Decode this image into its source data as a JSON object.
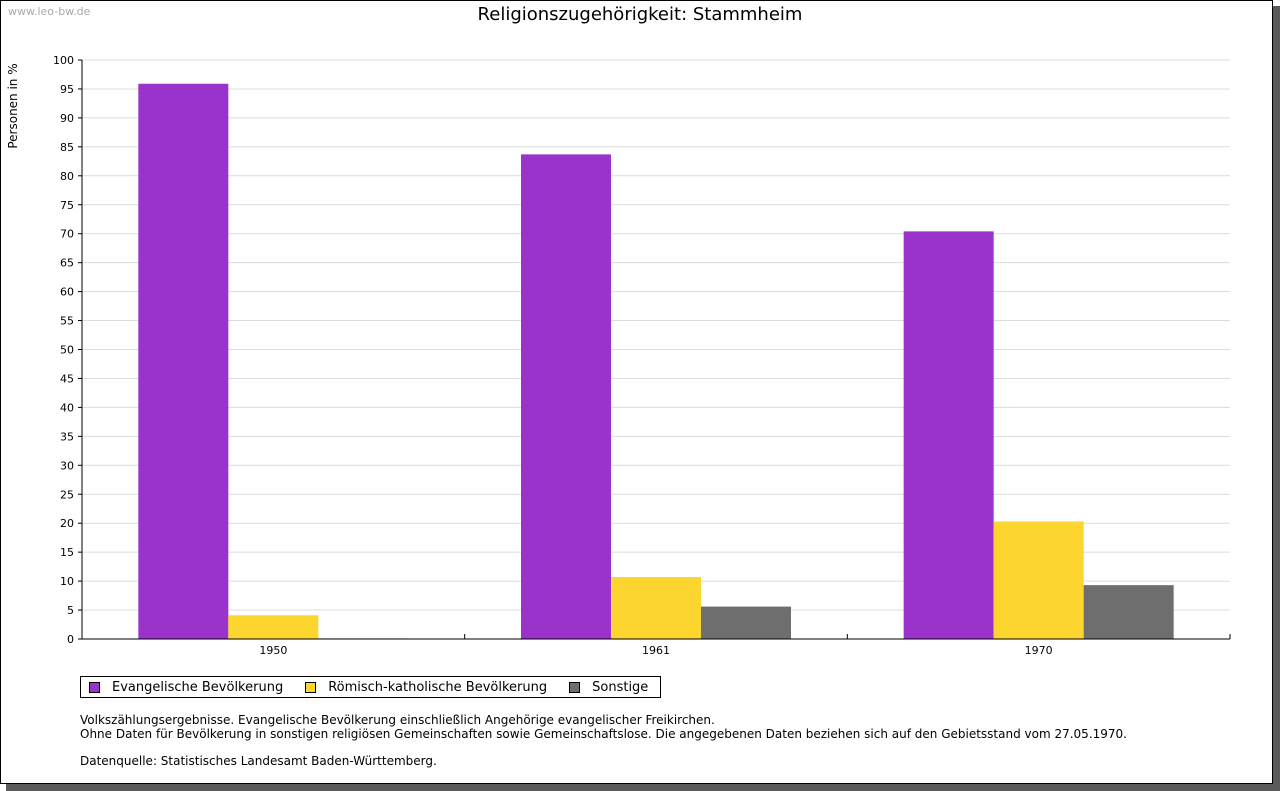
{
  "watermark": "www.leo-bw.de",
  "colors": {
    "evangelisch": "#9933cc",
    "katholisch": "#fcd52f",
    "sonstige": "#6e6e6e",
    "grid": "#dcdcdc"
  },
  "chart_data": {
    "type": "bar",
    "title": "Religionszugehörigkeit: Stammheim",
    "xlabel": "",
    "ylabel": "Personen in %",
    "ylim": [
      0,
      100
    ],
    "ytick_step": 5,
    "grid": true,
    "legend_position": "bottom-left",
    "categories": [
      "1950",
      "1961",
      "1970"
    ],
    "series": [
      {
        "name": "Evangelische Bevölkerung",
        "color_key": "evangelisch",
        "values": [
          95.9,
          83.7,
          70.4
        ]
      },
      {
        "name": "Römisch-katholische Bevölkerung",
        "color_key": "katholisch",
        "values": [
          4.1,
          10.7,
          20.3
        ]
      },
      {
        "name": "Sonstige",
        "color_key": "sonstige",
        "values": [
          0.1,
          5.6,
          9.3
        ]
      }
    ]
  },
  "notes": {
    "line1": "Volkszählungsergebnisse. Evangelische Bevölkerung einschließlich Angehörige evangelischer Freikirchen.",
    "line2": "Ohne Daten für Bevölkerung in sonstigen religiösen Gemeinschaften sowie Gemeinschaftslose. Die angegebenen Daten beziehen sich auf den Gebietsstand vom 27.05.1970.",
    "source": "Datenquelle: Statistisches Landesamt Baden-Württemberg."
  }
}
